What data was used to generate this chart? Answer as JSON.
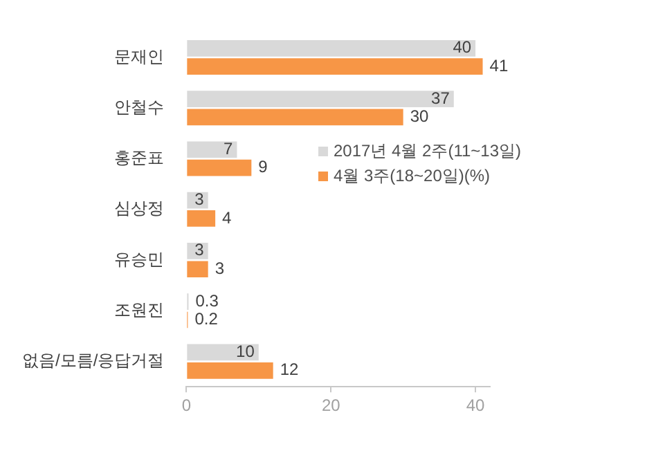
{
  "chart_data": {
    "type": "bar",
    "orientation": "horizontal",
    "categories": [
      "문재인",
      "안철수",
      "홍준표",
      "심상정",
      "유승민",
      "조원진",
      "없음/모름/응답거절"
    ],
    "series": [
      {
        "name": "2017년 4월 2주(11~13일)",
        "color": "#d9d9d9",
        "values": [
          40,
          37,
          7,
          3,
          3,
          0.3,
          10
        ]
      },
      {
        "name": "4월 3주(18~20일)(%)",
        "color": "#f79646",
        "values": [
          41,
          30,
          9,
          4,
          3,
          0.2,
          12
        ]
      }
    ],
    "xlim": [
      0,
      42
    ],
    "xticks": [
      0,
      20,
      40
    ],
    "grid": false,
    "legend": "right",
    "data_labels": true
  }
}
